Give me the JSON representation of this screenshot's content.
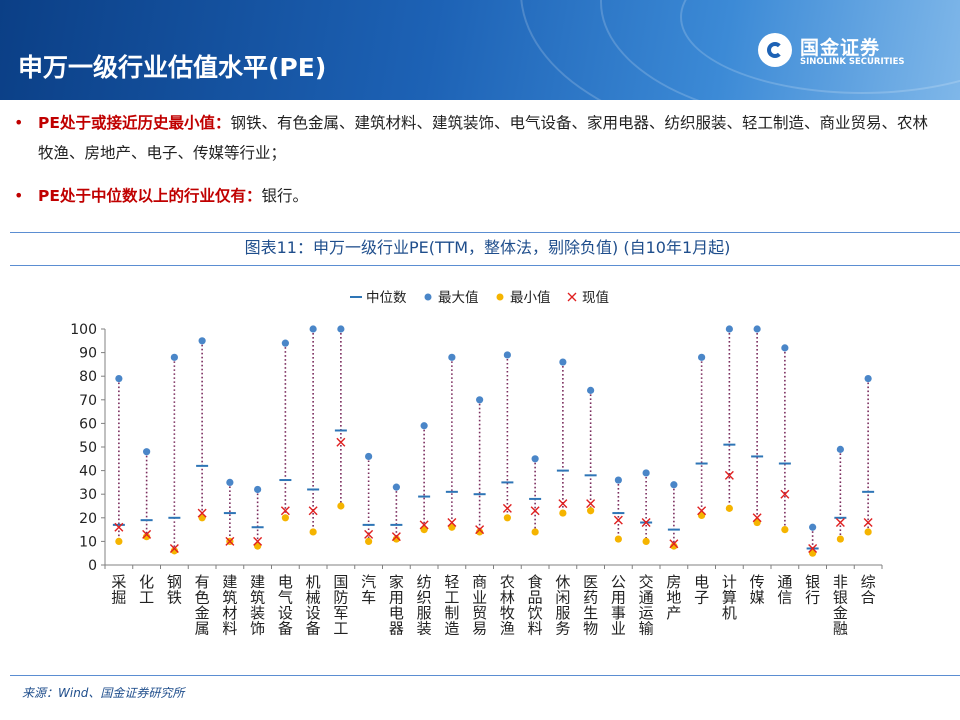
{
  "page": {
    "title": "申万一级行业估值水平(PE)",
    "logo_cn": "国金证券",
    "logo_en": "SINOLINK SECURITIES"
  },
  "bullets": [
    {
      "highlight": "PE处于或接近历史最小值：",
      "text": "钢铁、有色金属、建筑材料、建筑装饰、电气设备、家用电器、纺织服装、轻工制造、商业贸易、农林牧渔、房地产、电子、传媒等行业；"
    },
    {
      "highlight": "PE处于中位数以上的行业仅有：",
      "text": "银行。"
    }
  ],
  "chart_title": "图表11：申万一级行业PE(TTM，整体法，剔除负值) (自10年1月起)",
  "source": "来源：Wind、国金证券研究所",
  "colors": {
    "median": "#2e75b6",
    "max": "#4a86c8",
    "min": "#f5b400",
    "current": "#e02020",
    "range_line": "#7b2d5e"
  },
  "chart_data": {
    "type": "scatter",
    "ylim": [
      0,
      100
    ],
    "yticks": [
      0,
      10,
      20,
      30,
      40,
      50,
      60,
      70,
      80,
      90,
      100
    ],
    "grid": false,
    "legend_position": "top",
    "legend": [
      "中位数",
      "最大值",
      "最小值",
      "现值"
    ],
    "categories": [
      "采掘",
      "化工",
      "钢铁",
      "有色金属",
      "建筑材料",
      "建筑装饰",
      "电气设备",
      "机械设备",
      "国防军工",
      "汽车",
      "家用电器",
      "纺织服装",
      "轻工制造",
      "商业贸易",
      "农林牧渔",
      "食品饮料",
      "休闲服务",
      "医药生物",
      "公用事业",
      "交通运输",
      "房地产",
      "电子",
      "计算机",
      "传媒",
      "通信",
      "银行",
      "非银金融",
      "综合"
    ],
    "series": [
      {
        "name": "中位数",
        "marker": "dash",
        "values": [
          17,
          19,
          20,
          42,
          22,
          16,
          36,
          32,
          57,
          17,
          17,
          29,
          31,
          30,
          35,
          28,
          40,
          38,
          22,
          18,
          15,
          43,
          51,
          46,
          43,
          7,
          20,
          31
        ]
      },
      {
        "name": "最大值",
        "marker": "circle",
        "values": [
          79,
          48,
          88,
          95,
          35,
          32,
          94,
          100,
          100,
          46,
          33,
          59,
          88,
          70,
          89,
          45,
          86,
          74,
          36,
          39,
          34,
          88,
          100,
          100,
          92,
          16,
          49,
          79
        ]
      },
      {
        "name": "最小值",
        "marker": "circle",
        "values": [
          10,
          12,
          6,
          20,
          10,
          8,
          20,
          14,
          25,
          10,
          11,
          15,
          16,
          14,
          20,
          14,
          22,
          23,
          11,
          10,
          8,
          21,
          24,
          18,
          15,
          5,
          11,
          14
        ]
      },
      {
        "name": "现值",
        "marker": "x",
        "values": [
          16,
          13,
          7,
          22,
          10,
          10,
          23,
          23,
          52,
          13,
          12,
          17,
          18,
          15,
          24,
          23,
          26,
          26,
          19,
          18,
          9,
          23,
          38,
          20,
          30,
          7,
          18,
          18
        ]
      }
    ]
  }
}
